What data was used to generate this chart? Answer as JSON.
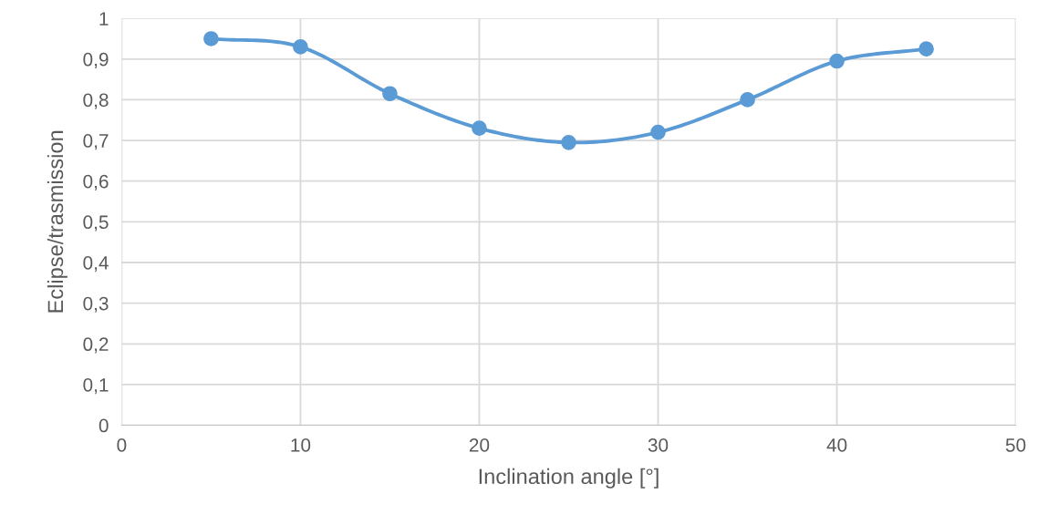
{
  "chart_data": {
    "type": "line",
    "xlabel": "Inclination angle [°]",
    "ylabel": "Eclipse/trasmission",
    "x": [
      5,
      10,
      15,
      20,
      25,
      30,
      35,
      40,
      45
    ],
    "series": [
      {
        "color": "#5b9bd5",
        "values": [
          0.95,
          0.93,
          0.815,
          0.73,
          0.695,
          0.72,
          0.8,
          0.895,
          0.925
        ]
      }
    ],
    "xlim": [
      0,
      50
    ],
    "xticks": [
      0,
      10,
      20,
      30,
      40,
      50
    ],
    "ylim": [
      0,
      1
    ],
    "yticks": [
      0,
      {
        "value": 0.1,
        "label": "0,1"
      },
      {
        "value": 0.2,
        "label": "0,2"
      },
      {
        "value": 0.3,
        "label": "0,3"
      },
      {
        "value": 0.4,
        "label": "0,4"
      },
      {
        "value": 0.5,
        "label": "0,5"
      },
      {
        "value": 0.6,
        "label": "0,6"
      },
      {
        "value": 0.7,
        "label": "0,7"
      },
      {
        "value": 0.8,
        "label": "0,8"
      },
      {
        "value": 0.9,
        "label": "0,9"
      },
      1
    ],
    "grid": true,
    "marker": "circle",
    "line_style": "solid",
    "legend": false
  }
}
